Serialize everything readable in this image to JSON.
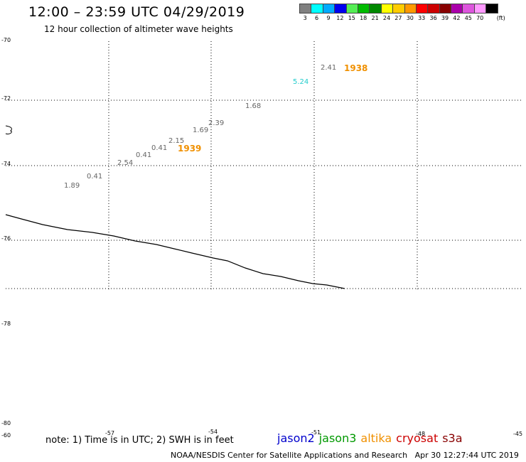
{
  "header": {
    "title": "12:00 – 23:59 UTC 04/29/2019",
    "subtitle": "12 hour collection of altimeter wave heights"
  },
  "color_scale": {
    "unit": "(ft)",
    "bins": [
      {
        "label": "3",
        "color": "#808080"
      },
      {
        "label": "6",
        "color": "#00ffff"
      },
      {
        "label": "9",
        "color": "#00aaff"
      },
      {
        "label": "12",
        "color": "#0000ee"
      },
      {
        "label": "15",
        "color": "#55ee55"
      },
      {
        "label": "18",
        "color": "#00bb00"
      },
      {
        "label": "21",
        "color": "#008800"
      },
      {
        "label": "24",
        "color": "#ffff00"
      },
      {
        "label": "27",
        "color": "#ffcc00"
      },
      {
        "label": "30",
        "color": "#ff9900"
      },
      {
        "label": "33",
        "color": "#ff0000"
      },
      {
        "label": "36",
        "color": "#cc0000"
      },
      {
        "label": "39",
        "color": "#880000"
      },
      {
        "label": "42",
        "color": "#aa00aa"
      },
      {
        "label": "45",
        "color": "#dd55dd"
      },
      {
        "label": "70",
        "color": "#ff99ff"
      },
      {
        "label": "",
        "color": "#000000"
      }
    ]
  },
  "map": {
    "lat_labels": [
      "-70",
      "-72",
      "-74",
      "-76",
      "-78",
      "-80"
    ],
    "lon_labels": [
      "-60",
      "-57",
      "-54",
      "-51",
      "-48",
      "-45"
    ],
    "wave_heights": [
      {
        "value": "2.41",
        "color": "#666666"
      },
      {
        "value": "5.24",
        "color": "#22cccc"
      },
      {
        "value": "1.68",
        "color": "#666666"
      },
      {
        "value": "2.39",
        "color": "#666666"
      },
      {
        "value": "1.69",
        "color": "#666666"
      },
      {
        "value": "2.15",
        "color": "#666666"
      },
      {
        "value": "0.41",
        "color": "#666666"
      },
      {
        "value": "0.41",
        "color": "#666666"
      },
      {
        "value": "2.54",
        "color": "#666666"
      },
      {
        "value": "0.41",
        "color": "#666666"
      },
      {
        "value": "1.89",
        "color": "#666666"
      }
    ],
    "time_labels": [
      "1938",
      "1939"
    ]
  },
  "note": "note: 1) Time is in UTC; 2) SWH is in feet",
  "satellites": [
    {
      "name": "jason2",
      "color": "#0000cc"
    },
    {
      "name": "jason3",
      "color": "#009900"
    },
    {
      "name": "altika",
      "color": "#f09000"
    },
    {
      "name": "cryosat",
      "color": "#cc0000"
    },
    {
      "name": "s3a",
      "color": "#880000"
    }
  ],
  "footer": {
    "credit": "NOAA/NESDIS Center for Satellite Applications and Research",
    "timestamp": "Apr 30 12:27:44 UTC 2019"
  }
}
